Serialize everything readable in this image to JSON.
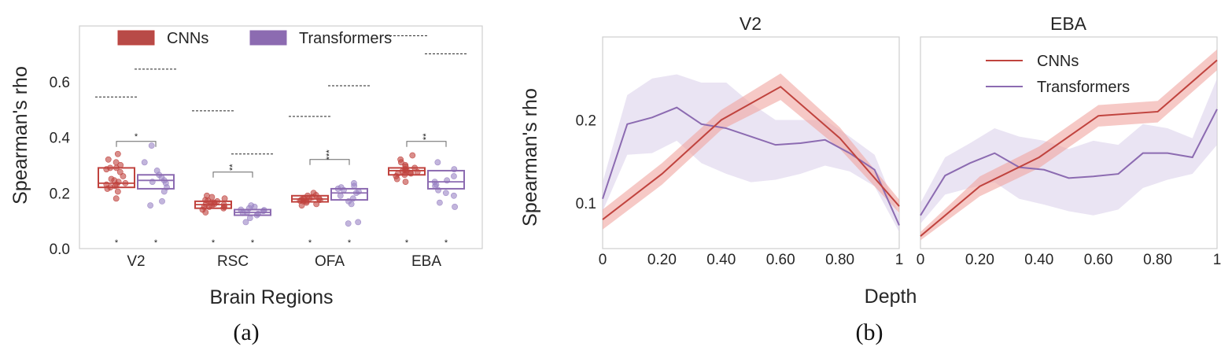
{
  "colors": {
    "cnn": "#c0433e",
    "cnn_fill": "#f0a5a0",
    "cnn_point": "#c0433e",
    "trans": "#8c6bb1",
    "trans_fill": "#d9cdea",
    "trans_point": "#9a84c4",
    "frame": "#cfcfcf",
    "axis_text": "#262626"
  },
  "captions": {
    "a": "(a)",
    "b": "(b)"
  },
  "chart_data": [
    {
      "type": "box",
      "panel": "a",
      "title": "",
      "xlabel": "Brain Regions",
      "ylabel": "Spearman's rho",
      "ylim": [
        0,
        0.8
      ],
      "yticks": [
        "0.0",
        "0.2",
        "0.4",
        "0.6"
      ],
      "categories": [
        "V2",
        "RSC",
        "OFA",
        "EBA"
      ],
      "legend": [
        "CNNs",
        "Transformers"
      ],
      "legend_position": "top",
      "series": [
        {
          "name": "CNNs",
          "boxes": [
            {
              "q1": 0.22,
              "median": 0.235,
              "q3": 0.29
            },
            {
              "q1": 0.145,
              "median": 0.158,
              "q3": 0.17
            },
            {
              "q1": 0.168,
              "median": 0.178,
              "q3": 0.19
            },
            {
              "q1": 0.265,
              "median": 0.28,
              "q3": 0.29
            }
          ],
          "points": [
            [
              0.18,
              0.205,
              0.215,
              0.22,
              0.225,
              0.23,
              0.23,
              0.235,
              0.24,
              0.245,
              0.25,
              0.26,
              0.275,
              0.285,
              0.29,
              0.29,
              0.3,
              0.32,
              0.34,
              0.31
            ],
            [
              0.13,
              0.14,
              0.145,
              0.15,
              0.15,
              0.155,
              0.158,
              0.16,
              0.165,
              0.165,
              0.17,
              0.172,
              0.175,
              0.18,
              0.185,
              0.19,
              0.16,
              0.15
            ],
            [
              0.155,
              0.16,
              0.165,
              0.17,
              0.172,
              0.175,
              0.178,
              0.18,
              0.18,
              0.182,
              0.185,
              0.19,
              0.192,
              0.2,
              0.175,
              0.17
            ],
            [
              0.24,
              0.25,
              0.26,
              0.265,
              0.27,
              0.272,
              0.275,
              0.278,
              0.28,
              0.28,
              0.285,
              0.29,
              0.295,
              0.3,
              0.31,
              0.32,
              0.335,
              0.27
            ]
          ],
          "ceiling_lines": [
            0.545,
            0.495,
            0.475,
            0.765
          ]
        },
        {
          "name": "Transformers",
          "boxes": [
            {
              "q1": 0.215,
              "median": 0.245,
              "q3": 0.265
            },
            {
              "q1": 0.12,
              "median": 0.13,
              "q3": 0.14
            },
            {
              "q1": 0.175,
              "median": 0.2,
              "q3": 0.215
            },
            {
              "q1": 0.215,
              "median": 0.24,
              "q3": 0.28
            }
          ],
          "points": [
            [
              0.155,
              0.17,
              0.205,
              0.22,
              0.235,
              0.245,
              0.255,
              0.265,
              0.28,
              0.31,
              0.37,
              0.24
            ],
            [
              0.095,
              0.11,
              0.12,
              0.125,
              0.13,
              0.135,
              0.14,
              0.145,
              0.15,
              0.155,
              0.128,
              0.138
            ],
            [
              0.09,
              0.095,
              0.16,
              0.17,
              0.19,
              0.2,
              0.205,
              0.21,
              0.215,
              0.22,
              0.225,
              0.235,
              0.18
            ],
            [
              0.15,
              0.165,
              0.19,
              0.21,
              0.225,
              0.23,
              0.24,
              0.245,
              0.26,
              0.285,
              0.31,
              0.2
            ]
          ],
          "ceiling_lines": [
            0.645,
            0.34,
            0.585,
            0.7
          ]
        }
      ],
      "significance": [
        "*",
        "**",
        "***",
        "**"
      ],
      "bottom_markers": [
        "*",
        "*",
        "*",
        "*",
        "*",
        "*",
        "*",
        "*"
      ]
    },
    {
      "type": "line",
      "panel": "b",
      "title": "V2",
      "xlabel": "Depth",
      "ylabel": "Spearman's rho",
      "xlim": [
        0,
        1
      ],
      "ylim": [
        0.045,
        0.3
      ],
      "xticks": [
        "0",
        "0.20",
        "0.40",
        "0.60",
        "0.80",
        "1"
      ],
      "yticks": [
        "0.1",
        "0.2"
      ],
      "series": [
        {
          "name": "CNNs",
          "x": [
            0,
            0.2,
            0.4,
            0.6,
            0.8,
            1
          ],
          "values": [
            0.08,
            0.135,
            0.2,
            0.24,
            0.178,
            0.096
          ],
          "lower": [
            0.068,
            0.122,
            0.188,
            0.224,
            0.165,
            0.088
          ],
          "upper": [
            0.092,
            0.148,
            0.212,
            0.256,
            0.191,
            0.104
          ]
        },
        {
          "name": "Transformers",
          "x": [
            0,
            0.083,
            0.167,
            0.25,
            0.333,
            0.417,
            0.5,
            0.583,
            0.667,
            0.75,
            0.833,
            0.917,
            1
          ],
          "values": [
            0.105,
            0.195,
            0.203,
            0.215,
            0.195,
            0.19,
            0.18,
            0.17,
            0.172,
            0.176,
            0.16,
            0.14,
            0.073
          ],
          "lower": [
            0.09,
            0.158,
            0.16,
            0.175,
            0.148,
            0.135,
            0.125,
            0.128,
            0.135,
            0.145,
            0.138,
            0.12,
            0.065
          ],
          "upper": [
            0.125,
            0.23,
            0.25,
            0.255,
            0.245,
            0.245,
            0.22,
            0.2,
            0.2,
            0.2,
            0.18,
            0.158,
            0.085
          ]
        }
      ]
    },
    {
      "type": "line",
      "panel": "b",
      "title": "EBA",
      "xlabel": "Depth",
      "ylabel": "",
      "xlim": [
        0,
        1
      ],
      "ylim": [
        0.045,
        0.3
      ],
      "xticks": [
        "0",
        "0.20",
        "0.40",
        "0.60",
        "0.80",
        "1"
      ],
      "legend": [
        "CNNs",
        "Transformers"
      ],
      "legend_position": "top",
      "series": [
        {
          "name": "CNNs",
          "x": [
            0,
            0.2,
            0.4,
            0.6,
            0.8,
            1
          ],
          "values": [
            0.06,
            0.12,
            0.155,
            0.205,
            0.21,
            0.272
          ],
          "lower": [
            0.055,
            0.108,
            0.142,
            0.192,
            0.197,
            0.26
          ],
          "upper": [
            0.065,
            0.132,
            0.168,
            0.218,
            0.223,
            0.285
          ]
        },
        {
          "name": "Transformers",
          "x": [
            0,
            0.083,
            0.167,
            0.25,
            0.333,
            0.417,
            0.5,
            0.583,
            0.667,
            0.75,
            0.833,
            0.917,
            1
          ],
          "values": [
            0.085,
            0.133,
            0.148,
            0.16,
            0.143,
            0.14,
            0.13,
            0.132,
            0.135,
            0.16,
            0.16,
            0.155,
            0.213
          ],
          "lower": [
            0.075,
            0.11,
            0.118,
            0.125,
            0.105,
            0.098,
            0.09,
            0.085,
            0.092,
            0.118,
            0.128,
            0.135,
            0.17
          ],
          "upper": [
            0.1,
            0.155,
            0.172,
            0.19,
            0.18,
            0.175,
            0.165,
            0.175,
            0.17,
            0.195,
            0.19,
            0.178,
            0.25
          ]
        }
      ]
    }
  ]
}
